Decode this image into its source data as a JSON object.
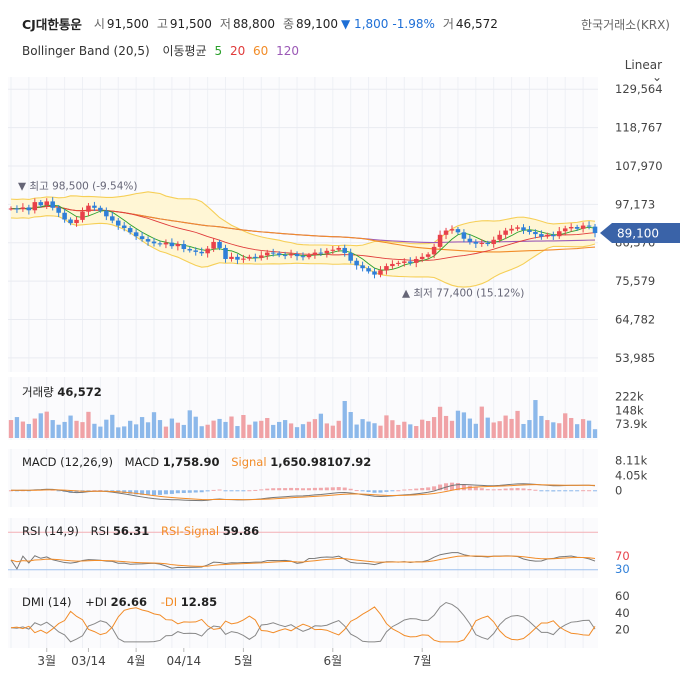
{
  "header": {
    "name": "CJ대한통운",
    "open_label": "시",
    "open": "91,500",
    "high_label": "고",
    "high": "91,500",
    "low_label": "저",
    "low": "88,800",
    "close_label": "종",
    "close": "89,100",
    "change": "▼ 1,800",
    "change_pct": "-1.98%",
    "volume_label": "거",
    "volume": "46,572",
    "exchange": "한국거래소(KRX)"
  },
  "indicators": {
    "bollinger": "Bollinger Band (20,5)",
    "ma_label": "이동평균",
    "ma": [
      {
        "period": "5",
        "color": "#2ca02c"
      },
      {
        "period": "20",
        "color": "#e03b3b"
      },
      {
        "period": "60",
        "color": "#f28c28"
      },
      {
        "period": "120",
        "color": "#9b59b6"
      }
    ]
  },
  "scale_mode": "Linear",
  "scale_arrow": "⌄",
  "colors": {
    "up": "#e8414a",
    "down": "#2f7fd8",
    "band": "#fff6d5",
    "band_line": "#f6cf57",
    "badge": "#3a63a8"
  },
  "chart_data": [
    {
      "type": "candlestick",
      "y_ticks": [
        "129,564",
        "118,767",
        "107,970",
        "97,173",
        "86,376",
        "75,579",
        "64,782",
        "53,985"
      ],
      "y_tick_values": [
        129564,
        118767,
        107970,
        97173,
        86376,
        75579,
        64782,
        53985
      ],
      "ylim": [
        50000,
        133000
      ],
      "x_ticks": [
        "3월",
        "03/14",
        "4월",
        "04/14",
        "5월",
        "6월",
        "7월"
      ],
      "x_tick_index": [
        6,
        13,
        21,
        29,
        39,
        54,
        69
      ],
      "last_price_label": "89,100",
      "max_annotation": "▼ 최고 98,500 (-9.54%)",
      "min_annotation": "▲ 최저 77,400 (15.12%)",
      "close": [
        96000,
        95800,
        96300,
        95500,
        97800,
        96900,
        98000,
        96200,
        94800,
        92900,
        91900,
        92800,
        95100,
        96800,
        96200,
        95400,
        93800,
        92600,
        91200,
        90500,
        89300,
        88200,
        87400,
        86700,
        86200,
        85900,
        86400,
        85400,
        86000,
        84600,
        84200,
        83800,
        83400,
        84700,
        86600,
        84900,
        81800,
        82400,
        81600,
        81900,
        82400,
        82100,
        82800,
        83600,
        83400,
        82900,
        82800,
        83200,
        82600,
        82300,
        82900,
        83600,
        83400,
        84100,
        84400,
        84900,
        83500,
        81300,
        80000,
        79200,
        78300,
        77400,
        78600,
        79800,
        80400,
        80700,
        81100,
        80700,
        81800,
        82400,
        83100,
        85200,
        88600,
        89800,
        90200,
        89300,
        87500,
        86600,
        86100,
        86300,
        86000,
        87200,
        88600,
        89800,
        90300,
        90700,
        89900,
        89400,
        88800,
        88100,
        88600,
        88200,
        89600,
        90400,
        90800,
        90300,
        91200,
        90900,
        89100
      ],
      "ma_note": "moving averages and Bollinger Band computed from close"
    },
    {
      "type": "bar",
      "title": "거래량",
      "value_label": "46,572",
      "y_ticks": [
        "222k",
        "148k",
        "73.9k"
      ],
      "values": [
        96,
        112,
        88,
        75,
        104,
        132,
        141,
        96,
        71,
        86,
        120,
        92,
        85,
        140,
        76,
        61,
        98,
        124,
        57,
        62,
        92,
        73,
        112,
        84,
        138,
        96,
        61,
        104,
        82,
        70,
        148,
        114,
        63,
        71,
        93,
        102,
        86,
        115,
        64,
        123,
        71,
        88,
        92,
        107,
        70,
        86,
        96,
        78,
        58,
        74,
        87,
        101,
        130,
        78,
        66,
        92,
        198,
        139,
        72,
        101,
        88,
        79,
        66,
        121,
        95,
        70,
        87,
        73,
        64,
        98,
        91,
        112,
        167,
        118,
        92,
        146,
        137,
        104,
        76,
        168,
        109,
        83,
        90,
        120,
        102,
        145,
        75,
        96,
        203,
        118,
        96,
        84,
        79,
        132,
        107,
        74,
        101,
        93,
        47
      ],
      "up_down": "colored by candle direction"
    },
    {
      "type": "line",
      "title": "MACD (12,26,9)",
      "macd_label": "MACD",
      "macd_value": "1,758.90",
      "signal_label": "Signal",
      "signal_value": "1,650.98107.92",
      "y_ticks": [
        "8.11k",
        "4.05k",
        "0"
      ],
      "series": [
        {
          "name": "MACD"
        },
        {
          "name": "Signal"
        }
      ]
    },
    {
      "type": "line",
      "title": "RSI (14,9)",
      "rsi_label": "RSI",
      "rsi_value": "56.31",
      "signal_label": "RSI-Signal",
      "signal_value": "59.86",
      "y_ticks": [
        "70",
        "30"
      ],
      "series": [
        {
          "name": "RSI"
        },
        {
          "name": "RSI-Signal"
        }
      ]
    },
    {
      "type": "line",
      "title": "DMI (14)",
      "pdi_label": "+DI",
      "pdi_value": "26.66",
      "mdi_label": "-DI",
      "mdi_value": "12.85",
      "y_ticks": [
        "60",
        "40",
        "20"
      ],
      "series": [
        {
          "name": "+DI"
        },
        {
          "name": "-DI"
        }
      ]
    }
  ]
}
